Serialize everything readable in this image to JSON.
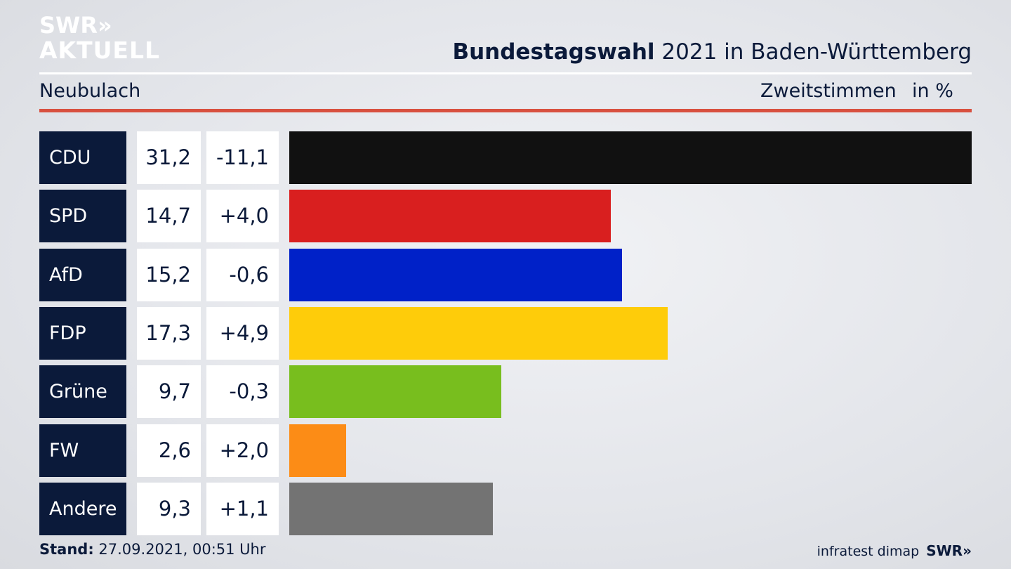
{
  "header": {
    "logo_line1": "SWR»",
    "logo_line2": "AKTUELL",
    "title_bold": "Bundestagswahl",
    "title_rest": " 2021 in Baden-Württemberg",
    "region": "Neubulach",
    "metric": "Zweitstimmen",
    "unit": "in %"
  },
  "footer": {
    "stand_label": "Stand:",
    "stand_value": " 27.09.2021, 00:51 Uhr",
    "source": "infratest dimap",
    "source_logo": "SWR»"
  },
  "chart_data": {
    "type": "bar",
    "orientation": "horizontal",
    "categories": [
      "CDU",
      "SPD",
      "AfD",
      "FDP",
      "Grüne",
      "FW",
      "Andere"
    ],
    "values": [
      31.2,
      14.7,
      15.2,
      17.3,
      9.7,
      2.6,
      9.3
    ],
    "value_labels": [
      "31,2",
      "14,7",
      "15,2",
      "17,3",
      "9,7",
      "2,6",
      "9,3"
    ],
    "diff_labels": [
      "-11,1",
      "+4,0",
      "-0,6",
      "+4,9",
      "-0,3",
      "+2,0",
      "+1,1"
    ],
    "colors": [
      "#111111",
      "#d91f1f",
      "#0021c8",
      "#fecc0a",
      "#78be1e",
      "#fc8c16",
      "#737373"
    ],
    "xlim": [
      0,
      31.2
    ],
    "grid": false,
    "legend": "none"
  }
}
